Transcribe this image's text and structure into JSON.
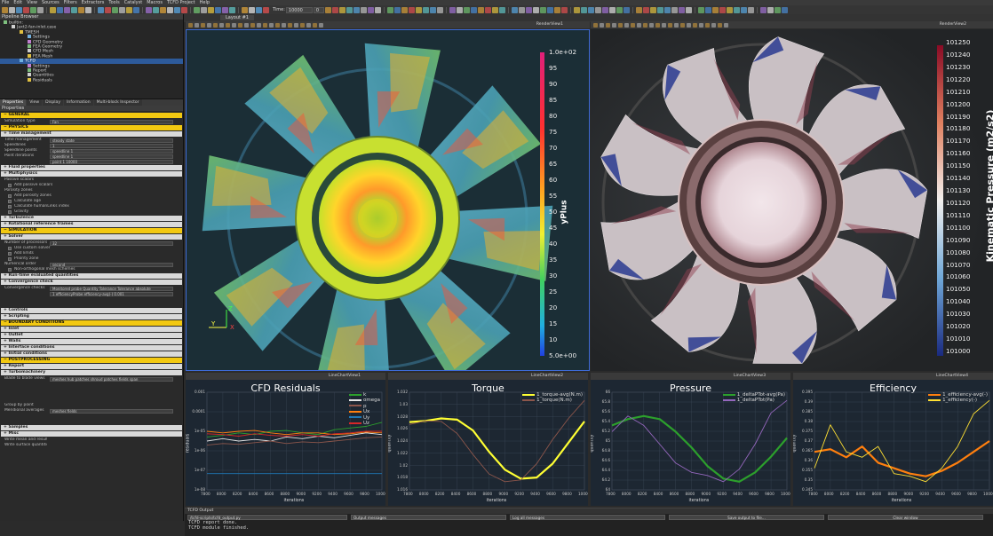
{
  "menubar": {
    "items": [
      "File",
      "Edit",
      "View",
      "Sources",
      "Filters",
      "Extractors",
      "Tools",
      "Catalyst",
      "Macros",
      "TCFD Project",
      "Help"
    ]
  },
  "toolbar": {
    "time_label": "Time:",
    "time_value": "10000",
    "frame_value": "0"
  },
  "layout_tab": "Layout #1",
  "pipeline": {
    "title": "Pipeline Browser",
    "items": [
      {
        "label": "builtin:",
        "indent": 0
      },
      {
        "label": "Jaxt2-fan-inlet.case",
        "indent": 1
      },
      {
        "label": "TMESH",
        "indent": 2
      },
      {
        "label": "Settings",
        "indent": 3
      },
      {
        "label": "CFD Geometry",
        "indent": 3
      },
      {
        "label": "FEA Geometry",
        "indent": 3
      },
      {
        "label": "CFD Mesh",
        "indent": 3
      },
      {
        "label": "FEA Mesh",
        "indent": 3
      },
      {
        "label": "TCFD",
        "indent": 2,
        "selected": true
      },
      {
        "label": "Settings",
        "indent": 3
      },
      {
        "label": "Report",
        "indent": 3
      },
      {
        "label": "Quantities",
        "indent": 3
      },
      {
        "label": "Residuals",
        "indent": 3
      }
    ]
  },
  "prop_tabs": [
    "Properties",
    "View",
    "Display",
    "Information",
    "Multi-block Inspector"
  ],
  "props_label": "Properties",
  "properties": [
    {
      "type": "yellow",
      "label": "GENERAL"
    },
    {
      "type": "row",
      "label": "Simulation type",
      "value": "Fan"
    },
    {
      "type": "yellow",
      "label": "PHYSICS"
    },
    {
      "type": "grey",
      "label": "Time management"
    },
    {
      "type": "row",
      "label": "Time management",
      "value": "steady state"
    },
    {
      "type": "row",
      "label": "Speedlines",
      "value": "1"
    },
    {
      "type": "row",
      "label": "Speedline points",
      "value": "speedline 1"
    },
    {
      "type": "row",
      "label": "Point iterations",
      "value": "speedline 1"
    },
    {
      "type": "row",
      "label": "",
      "value": "point 1   10000"
    },
    {
      "type": "grey",
      "label": "Fluid properties"
    },
    {
      "type": "grey",
      "label": "Multiphysics"
    },
    {
      "type": "row",
      "label": "Passive scalars",
      "value": ""
    },
    {
      "type": "check",
      "label": "Add passive scalars"
    },
    {
      "type": "row",
      "label": "Porosity zones",
      "value": ""
    },
    {
      "type": "check",
      "label": "Add porosity zones"
    },
    {
      "type": "check",
      "label": "Calculate age"
    },
    {
      "type": "check",
      "label": "Calculate humanLinks index"
    },
    {
      "type": "check",
      "label": "Gravity"
    },
    {
      "type": "grey",
      "label": "Turbulence"
    },
    {
      "type": "grey",
      "label": "Rotational reference frames"
    },
    {
      "type": "yellow",
      "label": "SIMULATION"
    },
    {
      "type": "grey",
      "label": "Solver"
    },
    {
      "type": "row",
      "label": "Number of processors",
      "value": "32"
    },
    {
      "type": "check",
      "label": "Use custom solver"
    },
    {
      "type": "check",
      "label": "Add limits"
    },
    {
      "type": "check",
      "label": "Priority zone"
    },
    {
      "type": "row",
      "label": "Numerical order",
      "value": "second"
    },
    {
      "type": "check",
      "label": "Non-orthogonal mesh schemes"
    },
    {
      "type": "grey",
      "label": "Run-time evaluated quantities"
    },
    {
      "type": "grey",
      "label": "Convergence check"
    },
    {
      "type": "row",
      "label": "Convergence checks",
      "value": "Monitored probe   Quantity   Tolerance   Tolerance absolute"
    },
    {
      "type": "row",
      "label": "",
      "value": "1  efficiencyProbe  efficiency-avg(-)  0.001"
    },
    {
      "type": "blank"
    },
    {
      "type": "blank"
    },
    {
      "type": "grey",
      "label": "Controls"
    },
    {
      "type": "grey",
      "label": "Scripting"
    },
    {
      "type": "yellow",
      "label": "BOUNDARY CONDITIONS"
    },
    {
      "type": "grey",
      "label": "Inlet"
    },
    {
      "type": "grey",
      "label": "Outlet"
    },
    {
      "type": "grey",
      "label": "Walls"
    },
    {
      "type": "grey",
      "label": "Interface conditions"
    },
    {
      "type": "grey",
      "label": "Initial conditions"
    },
    {
      "type": "yellow",
      "label": "POSTPROCESSING"
    },
    {
      "type": "grey",
      "label": "Report"
    },
    {
      "type": "grey",
      "label": "Turbomachinery"
    },
    {
      "type": "row",
      "label": "Blade to blade views",
      "value": "meshes  hub patches  shroud patches  fields  span"
    },
    {
      "type": "blank"
    },
    {
      "type": "blank"
    },
    {
      "type": "blank"
    },
    {
      "type": "blank"
    },
    {
      "type": "row",
      "label": "Group by point",
      "value": ""
    },
    {
      "type": "row",
      "label": "Meridional averages",
      "value": "meshes  fields"
    },
    {
      "type": "blank"
    },
    {
      "type": "blank"
    },
    {
      "type": "grey",
      "label": "Samples"
    },
    {
      "type": "grey",
      "label": "Misc"
    },
    {
      "type": "row",
      "label": "Write mean and results to CSV",
      "value": ""
    },
    {
      "type": "row",
      "label": "Write surface quantities",
      "value": ""
    }
  ],
  "viewport1": {
    "header": "RenderView1",
    "colorbar": {
      "title": "yPlus",
      "labels": [
        "1.0e+02",
        "95",
        "90",
        "85",
        "80",
        "75",
        "70",
        "65",
        "60",
        "55",
        "50",
        "45",
        "40",
        "35",
        "30",
        "25",
        "20",
        "15",
        "10",
        "5.0e+00"
      ]
    }
  },
  "viewport2": {
    "header": "RenderView2",
    "colorbar": {
      "title": "Kinematic Pressure (m2/s2)",
      "labels": [
        "101250",
        "101240",
        "101230",
        "101220",
        "101210",
        "101200",
        "101190",
        "101180",
        "101170",
        "101160",
        "101150",
        "101140",
        "101130",
        "101120",
        "101110",
        "101100",
        "101090",
        "101080",
        "101070",
        "101060",
        "101050",
        "101040",
        "101030",
        "101020",
        "101010",
        "101000"
      ]
    }
  },
  "charts": [
    {
      "header": "LineChartView1",
      "chart_data": {
        "type": "line",
        "title": "CFD Residuals",
        "xlabel": "iterations",
        "ylabel": "residuals",
        "xlim": [
          7800,
          10000
        ],
        "ytick_labels": [
          "0.001",
          "0.0001",
          "1e-05",
          "1e-06",
          "1e-07",
          "1e-08"
        ],
        "xtick_labels": [
          "7800",
          "8000",
          "8200",
          "8400",
          "8600",
          "8800",
          "9000",
          "9200",
          "9400",
          "9600",
          "9800",
          "10000"
        ],
        "legend_position": "top-right",
        "series": [
          {
            "name": "k",
            "color": "#2ca02c",
            "values": [
              0.55,
              0.57,
              0.6,
              0.58,
              0.62,
              0.63,
              0.6,
              0.58,
              0.64,
              0.66,
              0.68,
              0.73
            ]
          },
          {
            "name": "omega",
            "color": "#e6e6e6",
            "values": [
              0.5,
              0.53,
              0.5,
              0.52,
              0.5,
              0.55,
              0.53,
              0.56,
              0.54,
              0.57,
              0.6,
              0.58
            ]
          },
          {
            "name": "p",
            "color": "#8c564b",
            "values": [
              0.45,
              0.47,
              0.46,
              0.48,
              0.5,
              0.47,
              0.49,
              0.48,
              0.5,
              0.52,
              0.54,
              0.55
            ]
          },
          {
            "name": "Ux",
            "color": "#ff7f0e",
            "values": [
              0.62,
              0.6,
              0.62,
              0.63,
              0.6,
              0.58,
              0.6,
              0.6,
              0.58,
              0.59,
              0.61,
              0.6
            ]
          },
          {
            "name": "Uy",
            "color": "#1f77b4",
            "values": [
              0.1,
              0.1,
              0.1,
              0.1,
              0.1,
              0.1,
              0.1,
              0.1,
              0.1,
              0.1,
              0.1,
              0.1
            ]
          },
          {
            "name": "Uz",
            "color": "#d62728",
            "values": [
              0.59,
              0.58,
              0.56,
              0.59,
              0.57,
              0.56,
              0.58,
              0.56,
              0.59,
              0.6,
              0.62,
              0.62
            ]
          }
        ]
      }
    },
    {
      "header": "LineChartView2",
      "chart_data": {
        "type": "line",
        "title": "Torque",
        "xlabel": "iterations",
        "ylabel": "quantity",
        "xlim": [
          7800,
          10000
        ],
        "ytick_labels": [
          "1.032",
          "1.03",
          "1.028",
          "1.026",
          "1.024",
          "1.022",
          "1.02",
          "1.018",
          "1.016"
        ],
        "xtick_labels": [
          "7800",
          "8000",
          "8200",
          "8400",
          "8600",
          "8800",
          "9000",
          "9200",
          "9400",
          "9600",
          "9800",
          "10000"
        ],
        "legend_position": "top-right",
        "series": [
          {
            "name": "1_torque-avg(N.m)",
            "color": "#ffff33",
            "values": [
              1.0264,
              1.0266,
              1.027,
              1.0268,
              1.025,
              1.0215,
              1.0185,
              1.017,
              1.0172,
              1.0195,
              1.023,
              1.0265
            ]
          },
          {
            "name": "1_torque(N.m)",
            "color": "#8c564b",
            "values": [
              1.026,
              1.0266,
              1.0265,
              1.0245,
              1.021,
              1.0178,
              1.0165,
              1.0168,
              1.0195,
              1.0235,
              1.027,
              1.03
            ]
          }
        ]
      }
    },
    {
      "header": "LineChartView3",
      "chart_data": {
        "type": "line",
        "title": "Pressure",
        "xlabel": "iterations",
        "ylabel": "quantity",
        "xlim": [
          7800,
          10000
        ],
        "ytick_labels": [
          "66",
          "65.8",
          "65.6",
          "65.4",
          "65.2",
          "65",
          "64.8",
          "64.6",
          "64.4",
          "64.2",
          "64"
        ],
        "xtick_labels": [
          "7800",
          "8000",
          "8200",
          "8400",
          "8600",
          "8800",
          "9000",
          "9200",
          "9400",
          "9600",
          "9800",
          "10000"
        ],
        "legend_position": "top-right",
        "series": [
          {
            "name": "1_deltaPTot-avg(Pa)",
            "color": "#2ca02c",
            "values": [
              65.2,
              65.3,
              65.35,
              65.3,
              65.1,
              64.85,
              64.55,
              64.35,
              64.3,
              64.45,
              64.7,
              65.0
            ]
          },
          {
            "name": "1_deltaPTot(Pa)",
            "color": "#9467bd",
            "values": [
              65.1,
              65.35,
              65.2,
              64.9,
              64.6,
              64.45,
              64.4,
              64.3,
              64.5,
              64.9,
              65.4,
              65.6
            ]
          }
        ]
      }
    },
    {
      "header": "LineChartView4",
      "chart_data": {
        "type": "line",
        "title": "Efficiency",
        "xlabel": "iterations",
        "ylabel": "quantity",
        "xlim": [
          7800,
          10000
        ],
        "ytick_labels": [
          "0.395",
          "0.39",
          "0.385",
          "0.38",
          "0.375",
          "0.37",
          "0.365",
          "0.36",
          "0.355",
          "0.35",
          "0.345"
        ],
        "xtick_labels": [
          "7800",
          "8000",
          "8200",
          "8400",
          "8600",
          "8800",
          "9000",
          "9200",
          "9400",
          "9600",
          "9800",
          "10000"
        ],
        "legend_position": "top-right",
        "series": [
          {
            "name": "1_efficiency-avg(-)",
            "color": "#ff7f0e",
            "values": [
              0.356,
              0.357,
              0.354,
              0.358,
              0.352,
              0.35,
              0.348,
              0.347,
              0.349,
              0.352,
              0.356,
              0.36
            ]
          },
          {
            "name": "1_efficiency(-)",
            "color": "#ffe033",
            "values": [
              0.35,
              0.366,
              0.356,
              0.354,
              0.358,
              0.348,
              0.347,
              0.345,
              0.35,
              0.358,
              0.37,
              0.375
            ]
          }
        ]
      }
    }
  ],
  "output": {
    "title": "TCFD Output",
    "selectors": [
      "/tcfd-scripts/tcfd_output.py",
      "Output messages",
      "Log all messages"
    ],
    "buttons": [
      "Save output to file...",
      "Clear window"
    ],
    "lines": [
      "TCFD report done.",
      "TCFD module finished."
    ]
  }
}
